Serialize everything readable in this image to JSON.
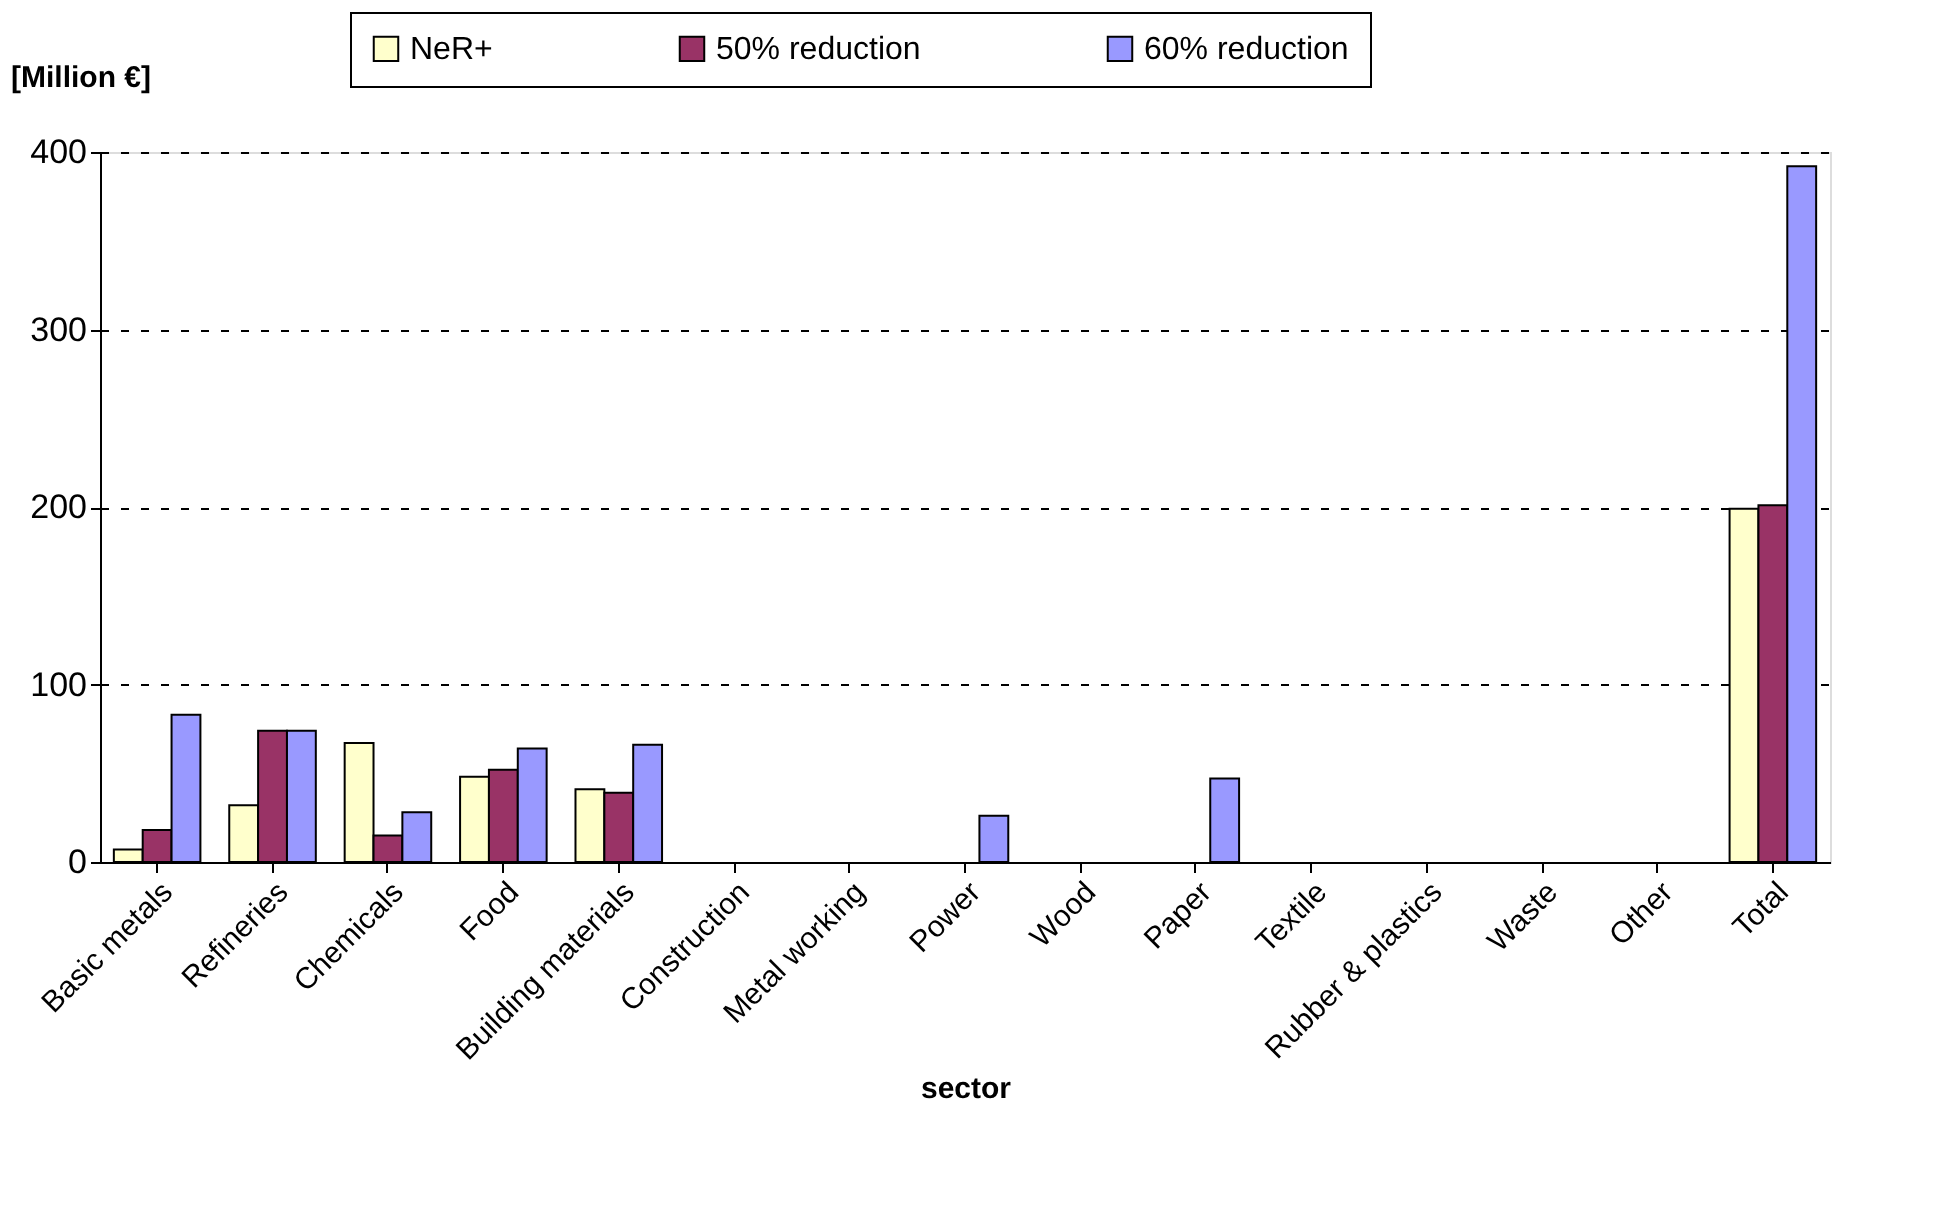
{
  "chart_data": {
    "type": "bar",
    "xlabel": "sector",
    "ylabel": "[Million €]",
    "categories": [
      "Basic metals",
      "Refineries",
      "Chemicals",
      "Food",
      "Building materials",
      "Construction",
      "Metal working",
      "Power",
      "Wood",
      "Paper",
      "Textile",
      "Rubber & plastics",
      "Waste",
      "Other",
      "Total"
    ],
    "series": [
      {
        "name": "NeR+",
        "color": "#ffffcc",
        "values": [
          7,
          32,
          67,
          48,
          41,
          0,
          0,
          0,
          0,
          0,
          0,
          0,
          0,
          0,
          199
        ]
      },
      {
        "name": "50% reduction",
        "color": "#993366",
        "values": [
          18,
          74,
          15,
          52,
          39,
          0,
          0,
          0,
          0,
          0,
          0,
          0,
          0,
          0,
          201
        ]
      },
      {
        "name": "60% reduction",
        "color": "#9999ff",
        "values": [
          83,
          74,
          28,
          64,
          66,
          0,
          0,
          26,
          0,
          47,
          0,
          0,
          0,
          0,
          392
        ]
      }
    ],
    "ylim": [
      0,
      400
    ],
    "yticks": [
      0,
      100,
      200,
      300,
      400
    ],
    "grid": "y",
    "legend": "top"
  }
}
